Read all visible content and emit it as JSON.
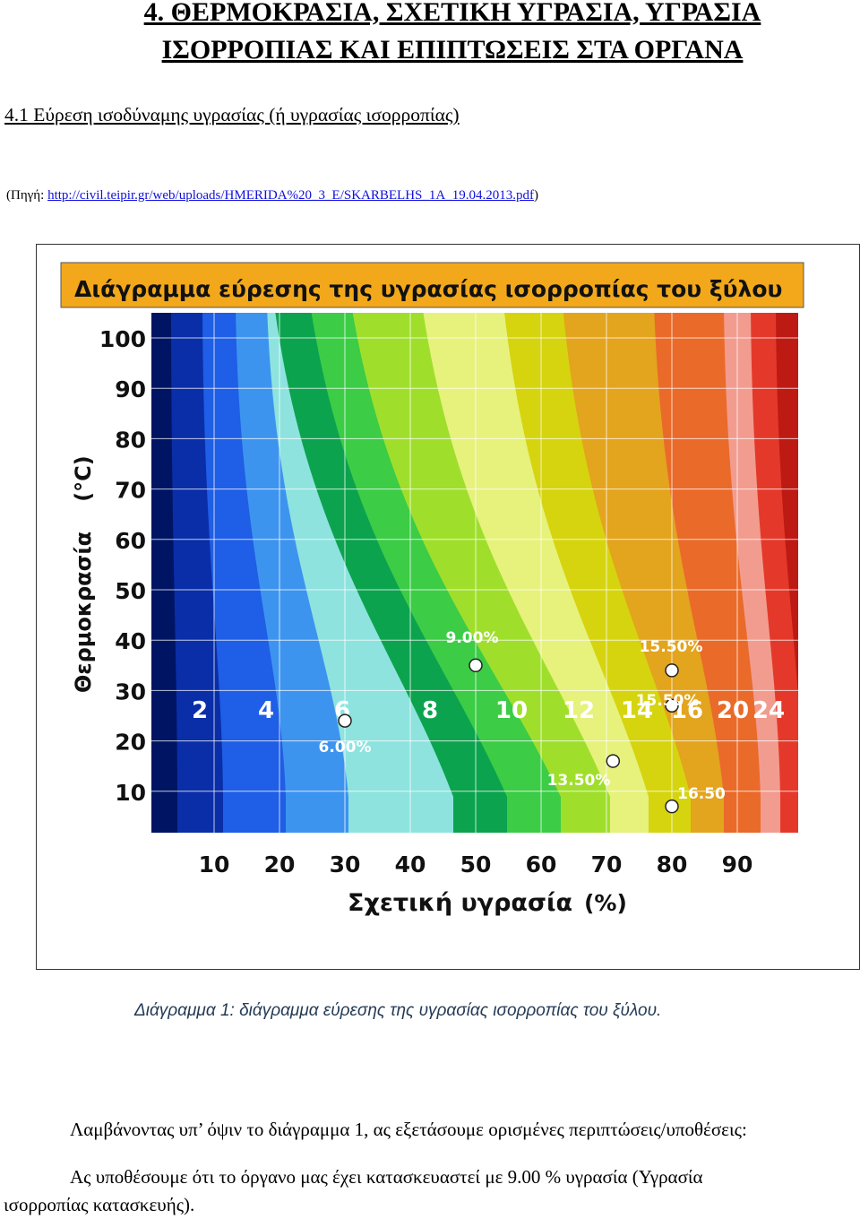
{
  "heading": {
    "line1": "4. ΘΕΡΜΟΚΡΑΣΙΑ, ΣΧΕΤΙΚΗ ΥΓΡΑΣΙΑ, ΥΓΡΑΣΙΑ",
    "line2": "ΙΣΟΡΡΟΠΙΑΣ ΚΑΙ ΕΠΙΠΤΩΣΕΙΣ ΣΤΑ ΟΡΓΑΝΑ"
  },
  "subheading": "4.1 Εύρεση ισοδύναμης υγρασίας (ή υγρασίας ισορροπίας)",
  "source": {
    "prefix": "(Πηγή: ",
    "link": "http://civil.teipir.gr/web/uploads/HMERIDA%20_3_E/SKARBELHS_1A_19.04.2013.pdf",
    "suffix": ")"
  },
  "chart_data": {
    "type": "contour",
    "title": "Διάγραμμα εύρεσης της υγρασίας ισορροπίας του ξύλου",
    "xlabel": "Σχετική υγρασία",
    "xlabel_unit": "(%)",
    "ylabel": "Θερμοκρασία",
    "ylabel_unit": "(°C)",
    "x_ticks": [
      "10",
      "20",
      "30",
      "40",
      "50",
      "60",
      "70",
      "80",
      "90"
    ],
    "y_ticks": [
      "100",
      "90",
      "80",
      "70",
      "60",
      "50",
      "40",
      "30",
      "20",
      "10"
    ],
    "xlim": [
      0,
      100
    ],
    "ylim": [
      0,
      110
    ],
    "grid": true,
    "band_labels": [
      "2",
      "4",
      "6",
      "8",
      "10",
      "12",
      "14",
      "16",
      "20",
      "24"
    ],
    "band_colors": [
      "#001464",
      "#0a2ea8",
      "#1f5ee6",
      "#3d94ef",
      "#8ee3df",
      "#0ca34e",
      "#3ccc46",
      "#9fdf2c",
      "#e6f27c",
      "#d6d40e",
      "#e3a41e",
      "#ea6a2a",
      "#f29c90",
      "#e4392a",
      "#be1a14"
    ],
    "points": [
      {
        "label": "6.00%",
        "rh": 30,
        "temp": 24
      },
      {
        "label": "9.00%",
        "rh": 50,
        "temp": 35
      },
      {
        "label": "13.50%",
        "rh": 71,
        "temp": 16
      },
      {
        "label": "15.50%",
        "rh": 80,
        "temp": 34
      },
      {
        "label": "15.50%",
        "rh": 80,
        "temp": 27
      },
      {
        "label": "16.50",
        "rh": 80,
        "temp": 7
      }
    ]
  },
  "caption": "Διάγραμμα 1: διάγραμμα εύρεσης της υγρασίας ισορροπίας του ξύλου.",
  "paragraphs": {
    "p1": "Λαμβάνοντας υπ’ όψιν το διάγραμμα 1, ας εξετάσουμε ορισμένες περιπτώσεις/υποθέσεις:",
    "p2_line1": "Ας υποθέσουμε ότι το όργανο μας έχει κατασκευαστεί με 9.00 % υγρασία (Υγρασία",
    "p2_line2": "ισορροπίας κατασκευής)."
  }
}
